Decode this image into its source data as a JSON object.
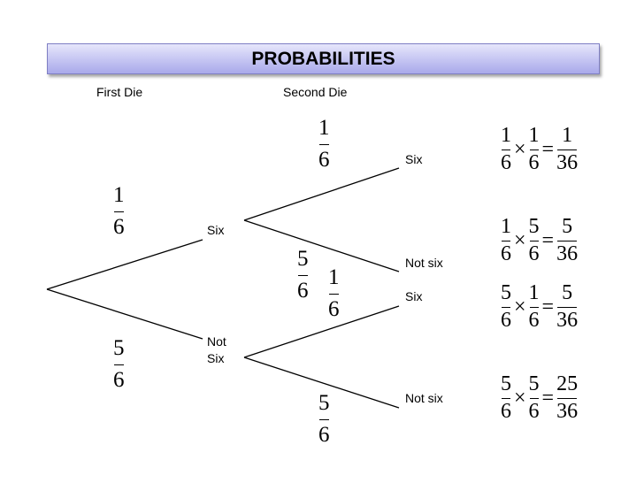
{
  "title": "PROBABILITIES",
  "headers": {
    "first": "First Die",
    "second": "Second Die"
  },
  "nodes": {
    "six": "Six",
    "not_six_line1": "Not",
    "not_six_line2": "Six",
    "leaf_six_top": "Six",
    "leaf_not_six_top": "Not six",
    "leaf_six_bottom": "Six",
    "leaf_not_six_bottom": "Not six"
  },
  "branches": {
    "first_six": {
      "num": "1",
      "den": "6"
    },
    "first_not_six": {
      "num": "5",
      "den": "6"
    },
    "six_six": {
      "num": "1",
      "den": "6"
    },
    "six_not_six": {
      "num": "5",
      "den": "6"
    },
    "not_six_six": {
      "num": "1",
      "den": "6"
    },
    "not_six_not_six": {
      "num": "5",
      "den": "6"
    }
  },
  "results": [
    {
      "a": {
        "num": "1",
        "den": "6"
      },
      "b": {
        "num": "1",
        "den": "6"
      },
      "r": {
        "num": "1",
        "den": "36"
      }
    },
    {
      "a": {
        "num": "1",
        "den": "6"
      },
      "b": {
        "num": "5",
        "den": "6"
      },
      "r": {
        "num": "5",
        "den": "36"
      }
    },
    {
      "a": {
        "num": "5",
        "den": "6"
      },
      "b": {
        "num": "1",
        "den": "6"
      },
      "r": {
        "num": "5",
        "den": "36"
      }
    },
    {
      "a": {
        "num": "5",
        "den": "6"
      },
      "b": {
        "num": "5",
        "den": "6"
      },
      "r": {
        "num": "25",
        "den": "36"
      }
    }
  ],
  "symbols": {
    "times": "×",
    "equals": "="
  }
}
